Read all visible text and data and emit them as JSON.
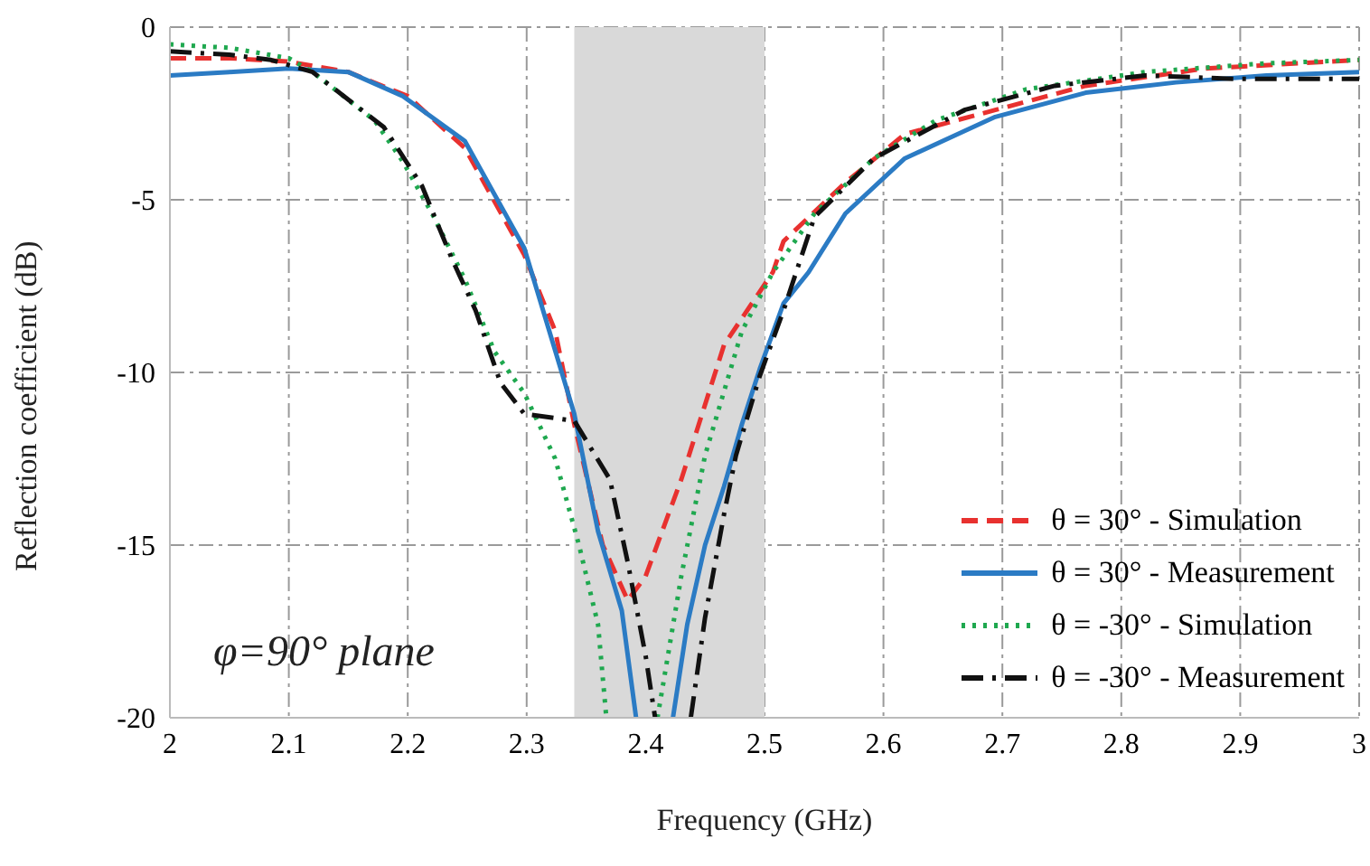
{
  "chart_data": {
    "type": "line",
    "xlabel": "Frequency (GHz)",
    "ylabel": "Reflection coefficient (dB)",
    "xlim": [
      2,
      3
    ],
    "xticks": [
      2,
      2.1,
      2.2,
      2.3,
      2.4,
      2.5,
      2.6,
      2.7,
      2.8,
      2.9,
      3
    ],
    "ylim": [
      -20,
      0
    ],
    "yticks": [
      -20,
      -15,
      -10,
      -5,
      0
    ],
    "grid": true,
    "legend": "bottom right",
    "marker": "none",
    "bands": [
      {
        "axis": "x",
        "from": 2.34,
        "to": 2.5,
        "color": "#d9d9d9"
      }
    ],
    "annotations": [
      "φ=90° plane"
    ],
    "series": [
      {
        "name": "θ = 30° - Simulation",
        "color": "#e8312f",
        "line_style": "dashed",
        "x": [
          2,
          2.05,
          2.1,
          2.15,
          2.2,
          2.248,
          2.298,
          2.324,
          2.34,
          2.364,
          2.385,
          2.4,
          2.43,
          2.466,
          2.507,
          2.516,
          2.568,
          2.618,
          2.694,
          2.77,
          2.87,
          3
        ],
        "values": [
          -0.9,
          -0.9,
          -1,
          -1.3,
          -2,
          -3.5,
          -6.6,
          -8.8,
          -11.5,
          -15,
          -16.6,
          -15.9,
          -13.1,
          -9.2,
          -7.1,
          -6.2,
          -4.5,
          -3.1,
          -2.4,
          -1.7,
          -1.2,
          -0.95
        ]
      },
      {
        "name": "θ = 30° - Measurement",
        "color": "#2b7bc4",
        "line_style": "solid",
        "x": [
          2,
          2.05,
          2.1,
          2.15,
          2.196,
          2.248,
          2.298,
          2.34,
          2.36,
          2.38,
          2.392,
          2.405,
          2.423,
          2.435,
          2.45,
          2.466,
          2.481,
          2.496,
          2.516,
          2.537,
          2.568,
          2.618,
          2.694,
          2.77,
          2.846,
          2.922,
          3
        ],
        "values": [
          -1.4,
          -1.3,
          -1.2,
          -1.3,
          -2,
          -3.3,
          -6.4,
          -11.2,
          -14.6,
          -16.9,
          -20,
          null,
          -20,
          -17.3,
          -15,
          -13.3,
          -11.5,
          -9.9,
          -8,
          -7.1,
          -5.4,
          -3.8,
          -2.6,
          -1.9,
          -1.6,
          -1.4,
          -1.3
        ]
      },
      {
        "name": "θ = -30° - Simulation",
        "color": "#1fa84f",
        "line_style": "dotted",
        "x": [
          2,
          2.05,
          2.1,
          2.12,
          2.172,
          2.196,
          2.222,
          2.248,
          2.273,
          2.298,
          2.324,
          2.344,
          2.36,
          2.367,
          2.39,
          2.41,
          2.43,
          2.45,
          2.481,
          2.507,
          2.542,
          2.592,
          2.644,
          2.72,
          2.82,
          2.92,
          3
        ],
        "values": [
          -0.5,
          -0.6,
          -0.9,
          -1.3,
          -2.7,
          -3.9,
          -5.5,
          -7.3,
          -9.4,
          -10.6,
          -12.5,
          -15,
          -17.3,
          -20,
          null,
          -20,
          -15.9,
          -12.4,
          -8.8,
          -7.1,
          -5.4,
          -3.8,
          -2.7,
          -1.8,
          -1.3,
          -1.05,
          -0.95
        ]
      },
      {
        "name": "θ = -30° - Measurement",
        "color": "#111111",
        "line_style": "dashdot",
        "x": [
          2,
          2.05,
          2.085,
          2.12,
          2.18,
          2.212,
          2.237,
          2.257,
          2.278,
          2.298,
          2.34,
          2.37,
          2.385,
          2.4,
          2.408,
          2.42,
          2.438,
          2.45,
          2.466,
          2.476,
          2.496,
          2.516,
          2.542,
          2.592,
          2.668,
          2.744,
          2.82,
          2.897,
          3
        ],
        "values": [
          -0.7,
          -0.8,
          -0.95,
          -1.3,
          -2.9,
          -4.6,
          -6.7,
          -8.2,
          -10.3,
          -11.2,
          -11.4,
          -13.1,
          -15.5,
          -18.2,
          -20,
          null,
          -20,
          -17.1,
          -14.1,
          -12.4,
          -10.1,
          -8.2,
          -5.5,
          -3.8,
          -2.4,
          -1.7,
          -1.4,
          -1.5,
          -1.5
        ]
      }
    ]
  }
}
